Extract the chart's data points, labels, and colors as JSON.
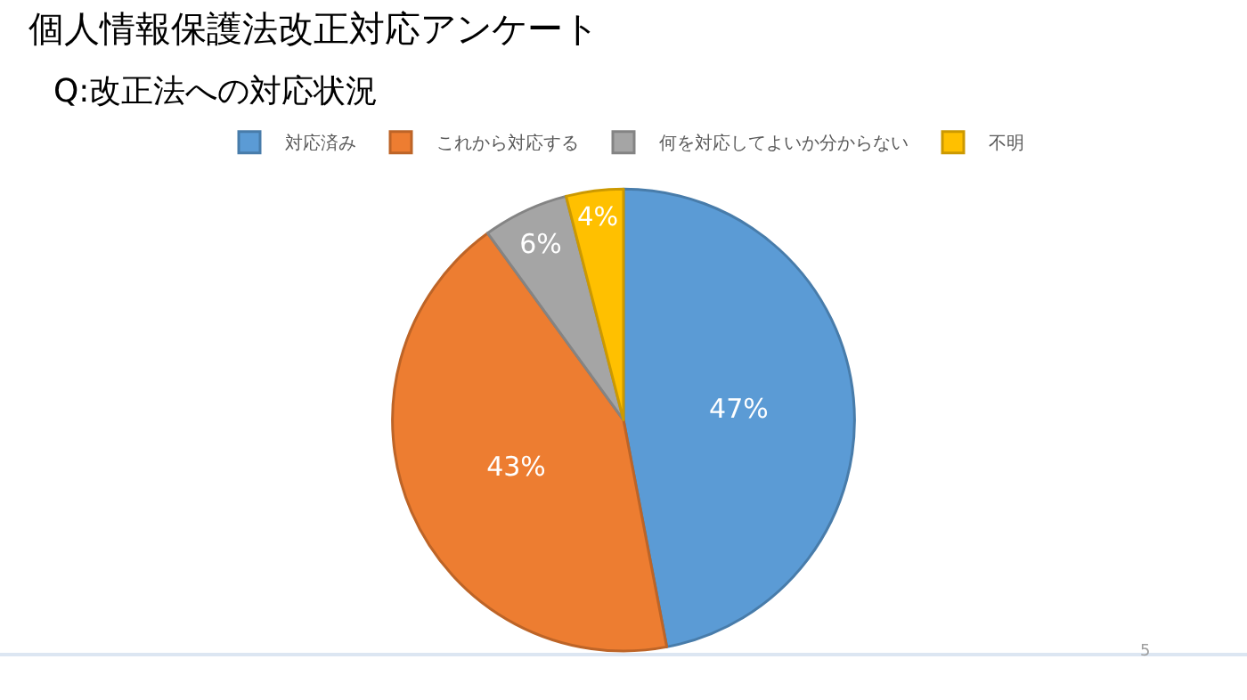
{
  "chart_data": {
    "type": "pie",
    "title": "個人情報保護法改正対応アンケート",
    "subtitle": "Q:改正法への対応状況",
    "categories": [
      "対応済み",
      "これから対応する",
      "何を対応してよいか分からない",
      "不明"
    ],
    "values": [
      47,
      43,
      6,
      4
    ],
    "colors": [
      "#5b9bd5",
      "#ed7d31",
      "#a5a5a5",
      "#ffc000"
    ],
    "value_labels": [
      "47%",
      "43%",
      "6%",
      "4%"
    ],
    "legend": "top",
    "annotations": [
      "5"
    ]
  }
}
